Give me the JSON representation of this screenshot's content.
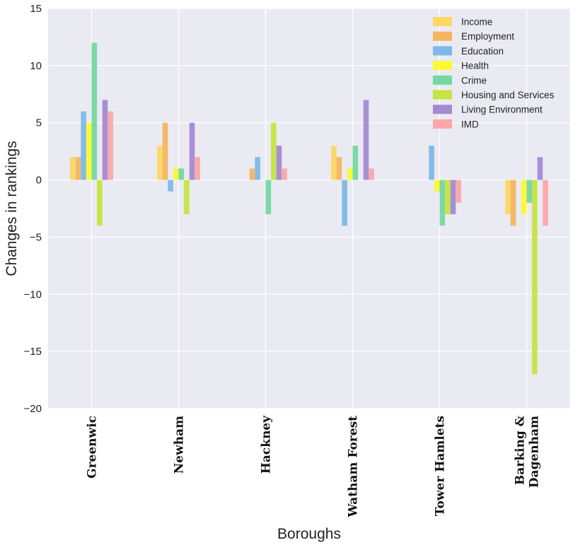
{
  "chart_data": {
    "type": "bar",
    "title": "",
    "xlabel": "Boroughs",
    "ylabel": "Changes in rankings",
    "ylim": [
      -20,
      15
    ],
    "yticks": [
      15,
      10,
      5,
      0,
      -5,
      -10,
      -15,
      -20
    ],
    "ytick_labels": [
      "15",
      "10",
      "5",
      "0",
      "−5",
      "−10",
      "−15",
      "−20"
    ],
    "grid": true,
    "legend_position": "top-right",
    "categories": [
      {
        "label": "Greenwic",
        "lines": [
          "Greenwic"
        ]
      },
      {
        "label": "Newham",
        "lines": [
          "Newham"
        ]
      },
      {
        "label": "Hackney",
        "lines": [
          "Hackney"
        ]
      },
      {
        "label": "Watham Forest",
        "lines": [
          "Watham Forest"
        ]
      },
      {
        "label": "Tower Hamlets",
        "lines": [
          "Tower Hamlets"
        ]
      },
      {
        "label": "Barking & Dagenham",
        "lines": [
          "Barking &",
          "Dagenham"
        ]
      }
    ],
    "series": [
      {
        "name": "Income",
        "color": "#fbd863",
        "values": [
          2,
          3,
          0,
          3,
          0,
          -3
        ]
      },
      {
        "name": "Employment",
        "color": "#f4b55e",
        "values": [
          2,
          5,
          1,
          2,
          0,
          -4
        ]
      },
      {
        "name": "Education",
        "color": "#7cb9e6",
        "values": [
          6,
          -1,
          2,
          -4,
          3,
          0
        ]
      },
      {
        "name": "Health",
        "color": "#fbf933",
        "values": [
          5,
          1,
          0,
          1,
          -1,
          -3
        ]
      },
      {
        "name": "Crime",
        "color": "#74d8a0",
        "values": [
          12,
          1,
          -3,
          3,
          -4,
          -2
        ]
      },
      {
        "name": "Housing and Services",
        "color": "#c5e440",
        "values": [
          -4,
          -3,
          5,
          0,
          -3,
          -17
        ]
      },
      {
        "name": "Living Environment",
        "color": "#a48ad1",
        "values": [
          7,
          5,
          3,
          7,
          -3,
          2
        ]
      },
      {
        "name": "IMD",
        "color": "#fba6a8",
        "values": [
          6,
          2,
          1,
          1,
          -2,
          -4
        ]
      }
    ]
  }
}
